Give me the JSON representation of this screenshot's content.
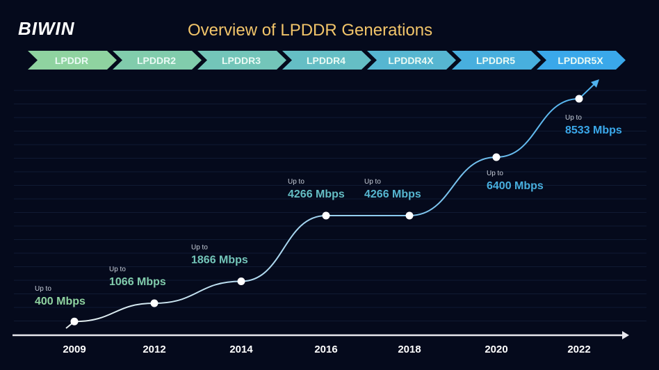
{
  "brand": "BIWIN",
  "chart_data": {
    "type": "line",
    "title": "Overview of LPDDR Generations",
    "generations": [
      "LPDDR",
      "LPDDR2",
      "LPDDR3",
      "LPDDR4",
      "LPDDR4X",
      "LPDDR5",
      "LPDDR5X"
    ],
    "categories": [
      "2009",
      "2012",
      "2014",
      "2016",
      "2018",
      "2020",
      "2022"
    ],
    "values": [
      400,
      1066,
      1866,
      4266,
      4266,
      6400,
      8533
    ],
    "point_prefix": "Up to",
    "labels": [
      "400 Mbps",
      "1066 Mbps",
      "1866 Mbps",
      "4266 Mbps",
      "4266 Mbps",
      "6400 Mbps",
      "8533 Mbps"
    ],
    "unit": "Mbps",
    "xlabel": "",
    "ylabel": "",
    "grid": true,
    "colors": {
      "start": "#8fd3a0",
      "end": "#3aa8ea",
      "title": "#f2c56a",
      "background": "#050a1c"
    }
  }
}
